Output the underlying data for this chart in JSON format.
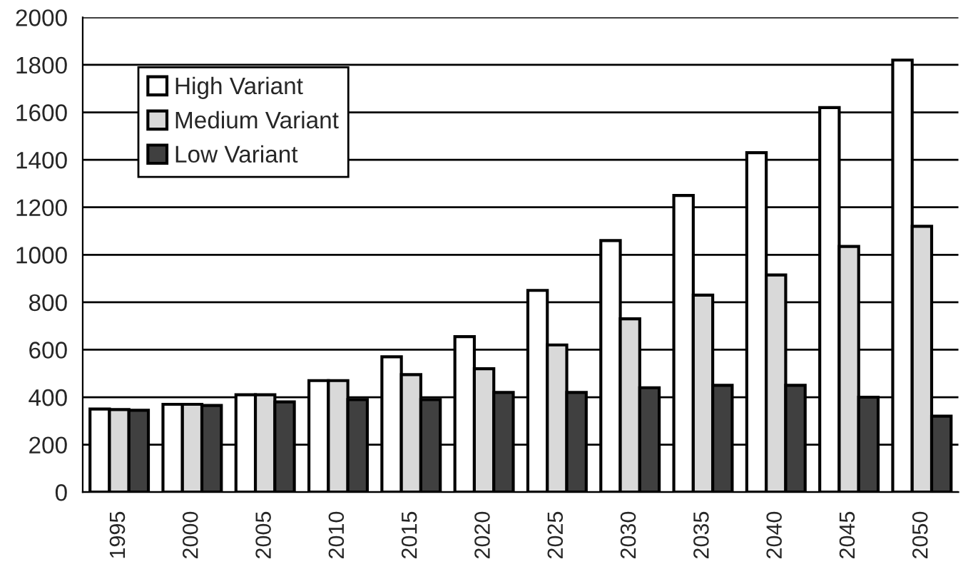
{
  "chart_data": {
    "type": "bar",
    "categories": [
      "1995",
      "2000",
      "2005",
      "2010",
      "2015",
      "2020",
      "2025",
      "2030",
      "2035",
      "2040",
      "2045",
      "2050"
    ],
    "series": [
      {
        "name": "High Variant",
        "color": "#ffffff",
        "values": [
          350,
          370,
          410,
          470,
          570,
          655,
          850,
          1060,
          1250,
          1430,
          1620,
          1820
        ]
      },
      {
        "name": "Medium Variant",
        "color": "#d9d9d9",
        "values": [
          348,
          370,
          410,
          470,
          495,
          520,
          620,
          730,
          830,
          915,
          1035,
          1120
        ]
      },
      {
        "name": "Low Variant",
        "color": "#404040",
        "values": [
          345,
          365,
          380,
          390,
          390,
          420,
          420,
          440,
          450,
          450,
          400,
          320
        ]
      }
    ],
    "ylim": [
      0,
      2000
    ],
    "yticks": [
      0,
      200,
      400,
      600,
      800,
      1000,
      1200,
      1400,
      1600,
      1800,
      2000
    ],
    "grid": "y",
    "legend": "top left"
  }
}
